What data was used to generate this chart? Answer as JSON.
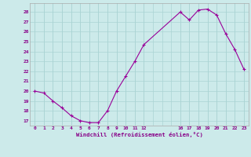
{
  "x": [
    0,
    1,
    2,
    3,
    4,
    5,
    6,
    7,
    8,
    9,
    10,
    11,
    12,
    16,
    17,
    18,
    19,
    20,
    21,
    22,
    23
  ],
  "y": [
    20,
    19.8,
    19,
    18.3,
    17.5,
    17,
    16.8,
    16.8,
    18,
    20,
    21.5,
    23,
    24.7,
    28,
    27.2,
    28.2,
    28.3,
    27.7,
    25.8,
    24.2,
    22.2
  ],
  "line_color": "#990099",
  "bg_color": "#cceaea",
  "grid_color": "#aad4d4",
  "xlabel": "Windchill (Refroidissement éolien,°C)",
  "xlabel_color": "#880088",
  "tick_color": "#880088",
  "ylabel_ticks": [
    17,
    18,
    19,
    20,
    21,
    22,
    23,
    24,
    25,
    26,
    27,
    28
  ],
  "xtick_positions": [
    0,
    1,
    2,
    3,
    4,
    5,
    6,
    7,
    8,
    9,
    10,
    11,
    12,
    16,
    17,
    18,
    19,
    20,
    21,
    22,
    23
  ],
  "xtick_labels": [
    "0",
    "1",
    "2",
    "3",
    "4",
    "5",
    "6",
    "7",
    "8",
    "9",
    "10",
    "11",
    "12",
    "16",
    "17",
    "18",
    "19",
    "20",
    "21",
    "22",
    "23"
  ],
  "xlim": [
    -0.5,
    23.5
  ],
  "ylim": [
    16.5,
    28.9
  ],
  "figsize": [
    3.2,
    2.0
  ],
  "dpi": 100
}
